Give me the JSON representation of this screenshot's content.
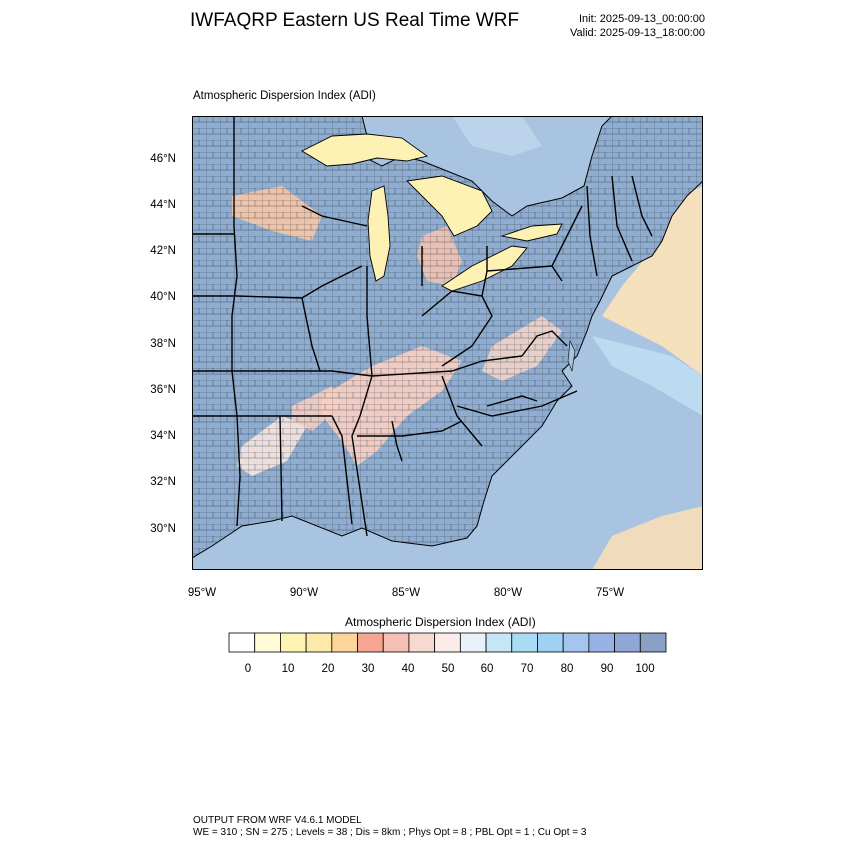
{
  "header": {
    "title": "IWFAQRP Eastern US Real Time WRF",
    "init": "Init: 2025-09-13_00:00:00",
    "valid": "Valid: 2025-09-13_18:00:00"
  },
  "map": {
    "subtitle": "Atmospheric Dispersion Index   (ADI)",
    "lat_labels": [
      "46°N",
      "44°N",
      "42°N",
      "40°N",
      "38°N",
      "36°N",
      "34°N",
      "32°N",
      "30°N"
    ],
    "lon_labels": [
      "95°W",
      "90°W",
      "85°W",
      "80°W",
      "75°W"
    ],
    "colors": {
      "ocean": "#a9c4e0",
      "land_default": "#8fadd0",
      "lake": "#fdf2b3"
    }
  },
  "colorbar": {
    "title": "Atmospheric Dispersion Index  (ADI)",
    "labels": [
      "0",
      "10",
      "20",
      "30",
      "40",
      "50",
      "60",
      "70",
      "80",
      "90",
      "100"
    ],
    "colors": [
      "#ffffff",
      "#fffbd8",
      "#fff3b3",
      "#fde9a8",
      "#fbd59a",
      "#f5a592",
      "#f6bfb5",
      "#f8d9d2",
      "#fbecea",
      "#e9f1fb",
      "#c6e6f6",
      "#a9dcf4",
      "#9fd1f2",
      "#a5c4ee",
      "#98b2e4",
      "#8fa7d6",
      "#8aa0c6"
    ]
  },
  "footer": {
    "line1": "OUTPUT FROM WRF V4.6.1 MODEL",
    "line2": "WE = 310 ; SN = 275 ; Levels = 38 ; Dis = 8km ; Phys Opt = 8 ; PBL Opt = 1 ; Cu Opt = 3"
  }
}
